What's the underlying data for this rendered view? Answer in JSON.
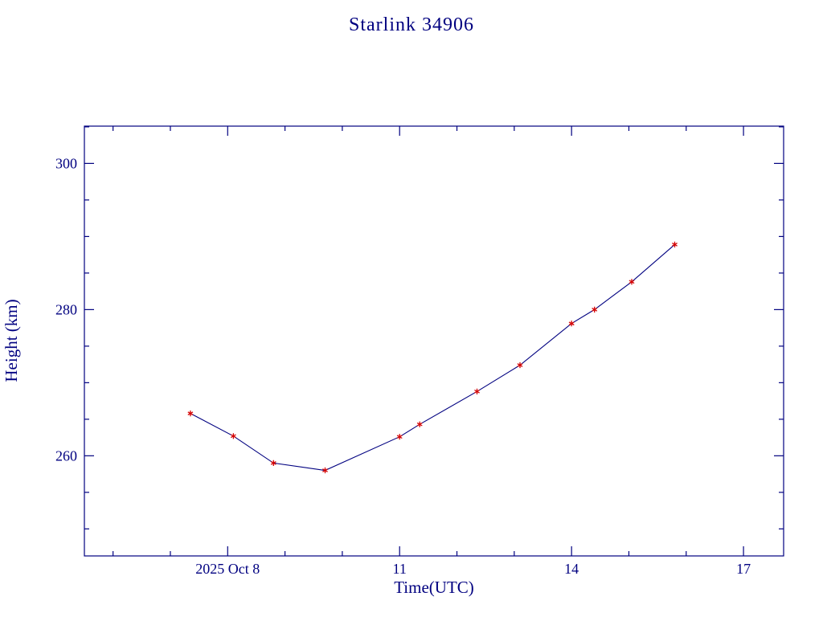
{
  "window": {
    "background": "#ffffff"
  },
  "colors": {
    "axis": "#000080",
    "text": "#000080",
    "line": "#000080",
    "marker": "#d40000",
    "background": "#ffffff"
  },
  "chart_data": {
    "type": "line",
    "title": "Starlink 34906",
    "xlabel": "Time(UTC)",
    "ylabel": "Height (km)",
    "xlim": [
      5.5,
      17.7
    ],
    "ylim": [
      246.3,
      305.1
    ],
    "grid": false,
    "legend": null,
    "marker_style": "asterisk",
    "x_ticks": [
      {
        "value": 8,
        "label": "2025 Oct 8"
      },
      {
        "value": 11,
        "label": "11"
      },
      {
        "value": 14,
        "label": "14"
      },
      {
        "value": 17,
        "label": "17"
      }
    ],
    "x_minor_ticks": [
      6,
      7,
      9,
      10,
      12,
      13,
      15,
      16
    ],
    "y_ticks": [
      {
        "value": 260,
        "label": "260"
      },
      {
        "value": 280,
        "label": "280"
      },
      {
        "value": 300,
        "label": "300"
      }
    ],
    "y_minor_ticks": [
      250,
      255,
      265,
      270,
      275,
      285,
      290,
      295,
      305
    ],
    "series": [
      {
        "name": "Height (km)",
        "x": [
          7.35,
          8.1,
          8.8,
          9.7,
          11.0,
          11.35,
          12.35,
          13.1,
          14.0,
          14.4,
          15.05,
          15.8
        ],
        "y": [
          265.8,
          262.7,
          259.0,
          258.0,
          262.6,
          264.3,
          268.8,
          272.4,
          278.1,
          280.0,
          283.8,
          288.9
        ]
      }
    ]
  }
}
